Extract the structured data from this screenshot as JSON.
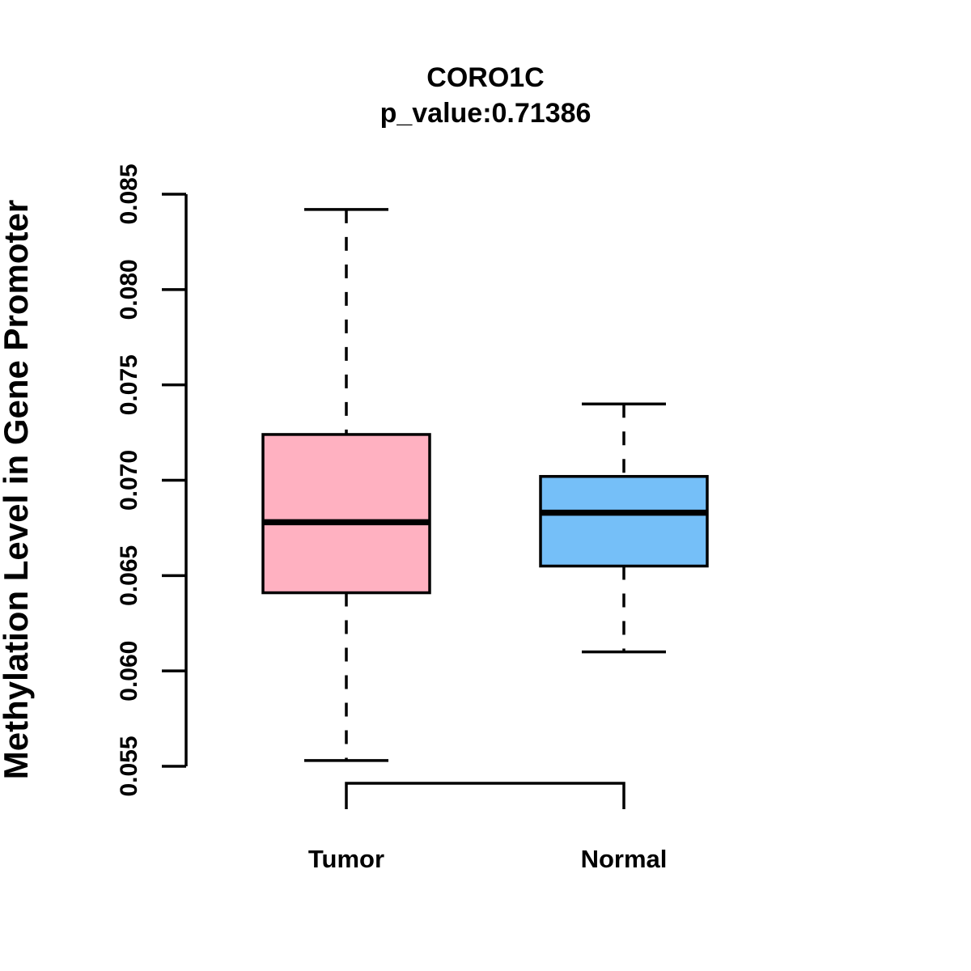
{
  "chart_data": {
    "type": "boxplot",
    "title": "CORO1C",
    "subtitle": "p_value:0.71386",
    "p_value": 0.71386,
    "gene": "CORO1C",
    "ylabel": "Methylation Level in Gene Promoter",
    "xlabel": "",
    "ylim": [
      0.055,
      0.085
    ],
    "grid": false,
    "legend": "none",
    "y_ticks": [
      {
        "value": 0.055,
        "label": "0.055"
      },
      {
        "value": 0.06,
        "label": "0.060"
      },
      {
        "value": 0.065,
        "label": "0.065"
      },
      {
        "value": 0.07,
        "label": "0.070"
      },
      {
        "value": 0.075,
        "label": "0.075"
      },
      {
        "value": 0.08,
        "label": "0.080"
      },
      {
        "value": 0.085,
        "label": "0.085"
      }
    ],
    "categories": [
      "Tumor",
      "Normal"
    ],
    "series": [
      {
        "name": "Tumor",
        "fill_color": "#FFB1C1",
        "whisker_low": 0.0553,
        "q1": 0.0641,
        "median": 0.0678,
        "q3": 0.0724,
        "whisker_high": 0.0842,
        "outliers": []
      },
      {
        "name": "Normal",
        "fill_color": "#75BFF8",
        "whisker_low": 0.061,
        "q1": 0.0655,
        "median": 0.0683,
        "q3": 0.0702,
        "whisker_high": 0.074,
        "outliers": []
      }
    ],
    "line_color": "#000000",
    "whisker_style": "dashed",
    "bottom_bracket_connects": [
      "Tumor",
      "Normal"
    ]
  }
}
